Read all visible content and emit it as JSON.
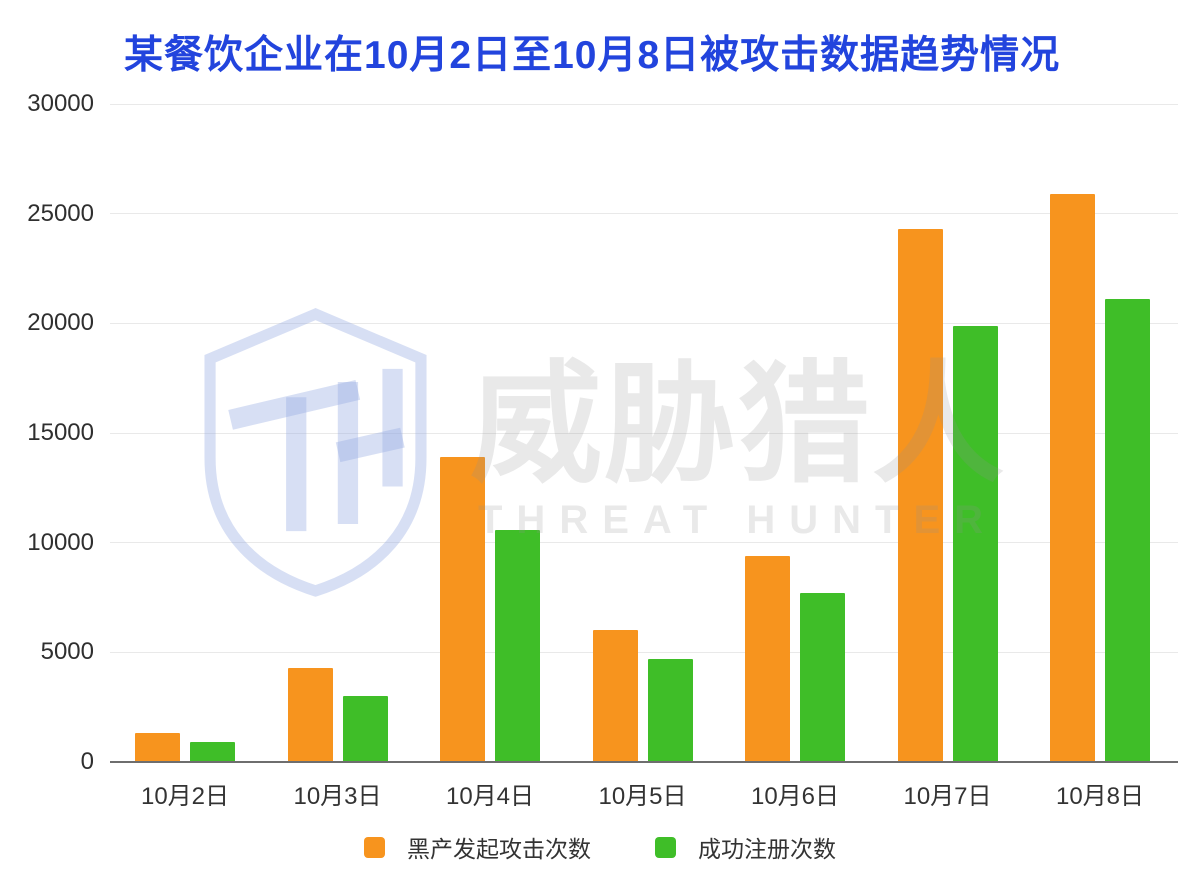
{
  "title": {
    "text": "某餐饮企业在10月2日至10月8日被攻击数据趋势情况",
    "color": "#2244DD"
  },
  "chart_data": {
    "type": "bar",
    "title": "某餐饮企业在10月2日至10月8日被攻击数据趋势情况",
    "categories": [
      "10月2日",
      "10月3日",
      "10月4日",
      "10月5日",
      "10月6日",
      "10月7日",
      "10月8日"
    ],
    "series": [
      {
        "name": "黑产发起攻击次数",
        "color": "#F7941E",
        "values": [
          1300,
          4300,
          13900,
          6000,
          9400,
          24300,
          25900
        ]
      },
      {
        "name": "成功注册次数",
        "color": "#3FBE28",
        "values": [
          900,
          3000,
          10600,
          4700,
          7700,
          19900,
          21100
        ]
      }
    ],
    "xlabel": "",
    "ylabel": "",
    "ylim": [
      0,
      30000
    ],
    "yticks": [
      0,
      5000,
      10000,
      15000,
      20000,
      25000,
      30000
    ],
    "grid": true,
    "legend_position": "bottom"
  },
  "watermark": {
    "logo_monogram": "TH",
    "brand_cn": "威胁猎人",
    "brand_en": "THREAT HUNTER"
  }
}
